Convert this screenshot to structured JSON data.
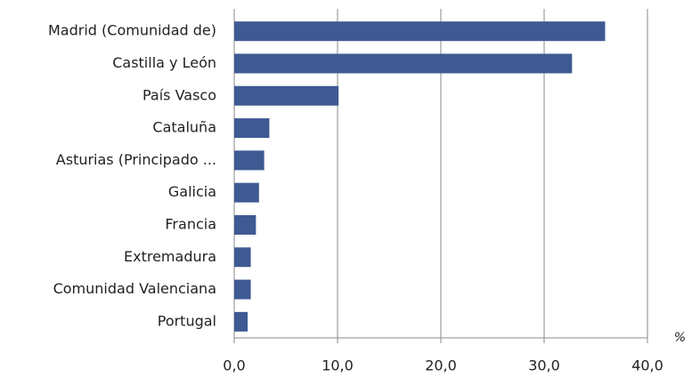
{
  "chart_data": {
    "type": "barh",
    "categories": [
      "Madrid (Comunidad de)",
      "Castilla y León",
      "País Vasco",
      "Cataluña",
      "Asturias (Principado ...",
      "Galicia",
      "Francia",
      "Extremadura",
      "Comunidad Valenciana",
      "Portugal"
    ],
    "values": [
      35.9,
      32.7,
      10.1,
      3.4,
      2.9,
      2.4,
      2.1,
      1.6,
      1.6,
      1.3
    ],
    "color": "#3f5a93",
    "xlabel": "%",
    "xlim": [
      0,
      40
    ],
    "xticks": [
      {
        "value": 0,
        "label": "0,0"
      },
      {
        "value": 10,
        "label": "10,0"
      },
      {
        "value": 20,
        "label": "20,0"
      },
      {
        "value": 30,
        "label": "30,0"
      },
      {
        "value": 40,
        "label": "40,0"
      }
    ],
    "grid": true
  }
}
